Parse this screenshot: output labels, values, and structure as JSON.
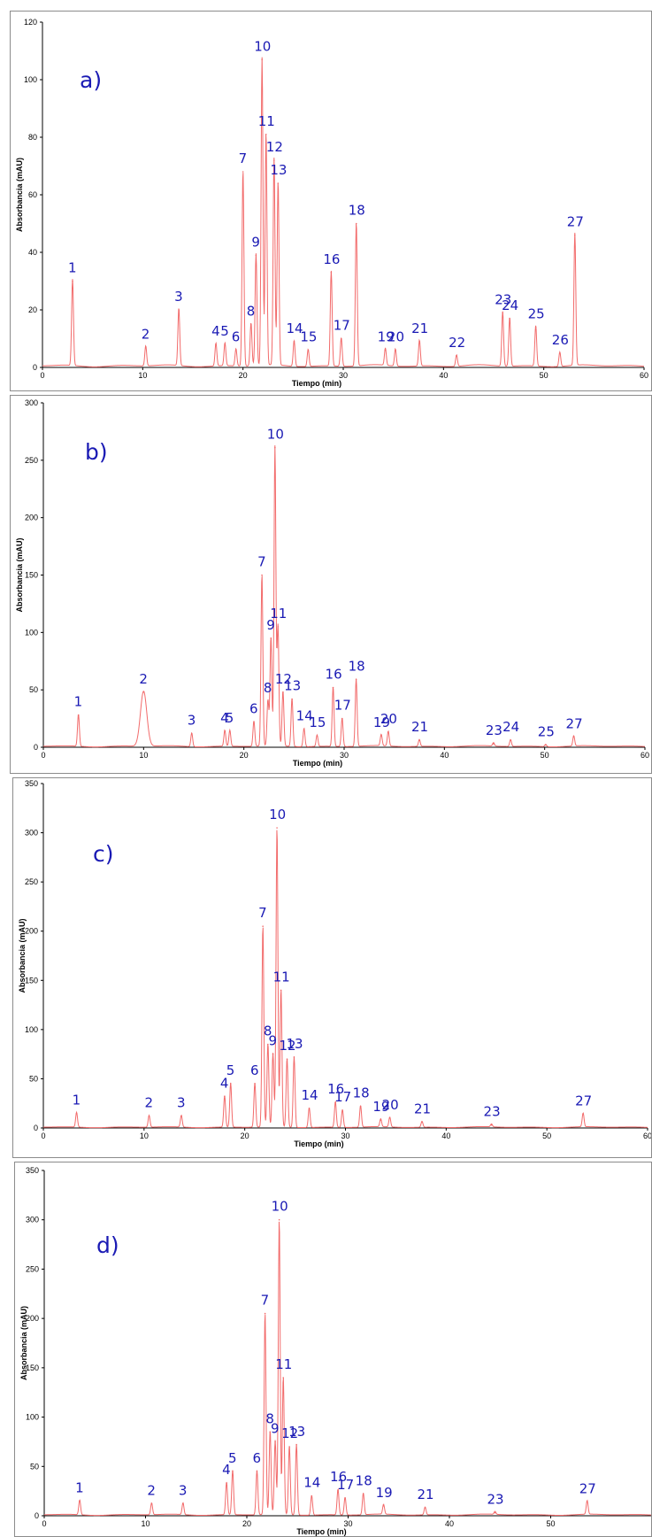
{
  "colors": {
    "trace": "#f26b6b",
    "peak_label": "#1a1ab4",
    "axis": "#000000",
    "frame": "#8c8c8c"
  },
  "chart_data": [
    {
      "type": "line",
      "panel_label": "a)",
      "xlabel": "Tiempo (min)",
      "ylabel": "Absorbancia (mAU)",
      "xlim": [
        0,
        60
      ],
      "ylim": [
        0,
        120
      ],
      "xticks": [
        "0",
        "10",
        "20",
        "30",
        "40",
        "50",
        "60"
      ],
      "yticks": [
        "0",
        "20",
        "40",
        "60",
        "80",
        "100",
        "120"
      ],
      "grid": false,
      "peaks": [
        {
          "label": "1",
          "x": 3.0,
          "y": 30
        },
        {
          "label": "2",
          "x": 10.3,
          "y": 7
        },
        {
          "label": "3",
          "x": 13.6,
          "y": 20
        },
        {
          "label": "4",
          "x": 17.3,
          "y": 8
        },
        {
          "label": "5",
          "x": 18.2,
          "y": 8
        },
        {
          "label": "6",
          "x": 19.3,
          "y": 6
        },
        {
          "label": "7",
          "x": 20.0,
          "y": 68
        },
        {
          "label": "8",
          "x": 20.8,
          "y": 15
        },
        {
          "label": "9",
          "x": 21.3,
          "y": 39
        },
        {
          "label": "10",
          "x": 21.9,
          "y": 107
        },
        {
          "label": "11",
          "x": 22.3,
          "y": 81
        },
        {
          "label": "12",
          "x": 23.1,
          "y": 72
        },
        {
          "label": "13",
          "x": 23.5,
          "y": 64
        },
        {
          "label": "14",
          "x": 25.1,
          "y": 9
        },
        {
          "label": "15",
          "x": 26.5,
          "y": 6
        },
        {
          "label": "16",
          "x": 28.8,
          "y": 33
        },
        {
          "label": "17",
          "x": 29.8,
          "y": 10
        },
        {
          "label": "18",
          "x": 31.3,
          "y": 50
        },
        {
          "label": "19",
          "x": 34.2,
          "y": 6
        },
        {
          "label": "20",
          "x": 35.2,
          "y": 6
        },
        {
          "label": "21",
          "x": 37.6,
          "y": 9
        },
        {
          "label": "22",
          "x": 41.3,
          "y": 4
        },
        {
          "label": "23",
          "x": 45.9,
          "y": 19
        },
        {
          "label": "24",
          "x": 46.6,
          "y": 17
        },
        {
          "label": "25",
          "x": 49.2,
          "y": 14
        },
        {
          "label": "26",
          "x": 51.6,
          "y": 5
        },
        {
          "label": "27",
          "x": 53.1,
          "y": 46
        }
      ]
    },
    {
      "type": "line",
      "panel_label": "b)",
      "xlabel": "Tiempo (min)",
      "ylabel": "Absorbancia (mAU)",
      "xlim": [
        0,
        60
      ],
      "ylim": [
        0,
        300
      ],
      "xticks": [
        "0",
        "10",
        "20",
        "30",
        "40",
        "50",
        "60"
      ],
      "yticks": [
        "0",
        "50",
        "100",
        "150",
        "200",
        "250",
        "300"
      ],
      "grid": false,
      "peaks": [
        {
          "label": "1",
          "x": 3.5,
          "y": 28
        },
        {
          "label": "2",
          "x": 10.0,
          "y": 48
        },
        {
          "label": "3",
          "x": 14.8,
          "y": 12
        },
        {
          "label": "4",
          "x": 18.1,
          "y": 14
        },
        {
          "label": "5",
          "x": 18.6,
          "y": 14
        },
        {
          "label": "6",
          "x": 21.0,
          "y": 22
        },
        {
          "label": "7",
          "x": 21.8,
          "y": 150
        },
        {
          "label": "8",
          "x": 22.4,
          "y": 40
        },
        {
          "label": "9",
          "x": 22.7,
          "y": 95
        },
        {
          "label": "10",
          "x": 23.1,
          "y": 261
        },
        {
          "label": "11",
          "x": 23.4,
          "y": 105
        },
        {
          "label": "12",
          "x": 23.9,
          "y": 48
        },
        {
          "label": "13",
          "x": 24.8,
          "y": 42
        },
        {
          "label": "14",
          "x": 26.0,
          "y": 16
        },
        {
          "label": "15",
          "x": 27.3,
          "y": 10
        },
        {
          "label": "16",
          "x": 28.9,
          "y": 52
        },
        {
          "label": "17",
          "x": 29.8,
          "y": 25
        },
        {
          "label": "18",
          "x": 31.2,
          "y": 59
        },
        {
          "label": "19",
          "x": 33.7,
          "y": 10
        },
        {
          "label": "20",
          "x": 34.4,
          "y": 13
        },
        {
          "label": "21",
          "x": 37.5,
          "y": 6
        },
        {
          "label": "23",
          "x": 44.9,
          "y": 3
        },
        {
          "label": "24",
          "x": 46.6,
          "y": 6
        },
        {
          "label": "25",
          "x": 50.1,
          "y": 2
        },
        {
          "label": "27",
          "x": 52.9,
          "y": 9
        }
      ]
    },
    {
      "type": "line",
      "panel_label": "c)",
      "xlabel": "Tiempo (min)",
      "ylabel": "Absorbancia (mAU)",
      "xlim": [
        0,
        60
      ],
      "ylim": [
        0,
        350
      ],
      "xticks": [
        "0",
        "10",
        "20",
        "30",
        "40",
        "50",
        "60"
      ],
      "yticks": [
        "0",
        "50",
        "100",
        "150",
        "200",
        "250",
        "300",
        "350"
      ],
      "grid": false,
      "peaks": [
        {
          "label": "1",
          "x": 3.3,
          "y": 15
        },
        {
          "label": "2",
          "x": 10.5,
          "y": 12
        },
        {
          "label": "3",
          "x": 13.7,
          "y": 12
        },
        {
          "label": "4",
          "x": 18.0,
          "y": 32
        },
        {
          "label": "5",
          "x": 18.6,
          "y": 45
        },
        {
          "label": "6",
          "x": 21.0,
          "y": 45
        },
        {
          "label": "7",
          "x": 21.8,
          "y": 205
        },
        {
          "label": "8",
          "x": 22.3,
          "y": 85
        },
        {
          "label": "9",
          "x": 22.8,
          "y": 75
        },
        {
          "label": "10",
          "x": 23.2,
          "y": 305
        },
        {
          "label": "11",
          "x": 23.6,
          "y": 140
        },
        {
          "label": "12",
          "x": 24.2,
          "y": 70
        },
        {
          "label": "13",
          "x": 24.9,
          "y": 72
        },
        {
          "label": "14",
          "x": 26.4,
          "y": 20
        },
        {
          "label": "16",
          "x": 29.0,
          "y": 26
        },
        {
          "label": "17",
          "x": 29.7,
          "y": 18
        },
        {
          "label": "18",
          "x": 31.5,
          "y": 22
        },
        {
          "label": "19",
          "x": 33.5,
          "y": 8
        },
        {
          "label": "20",
          "x": 34.4,
          "y": 10
        },
        {
          "label": "21",
          "x": 37.6,
          "y": 6
        },
        {
          "label": "23",
          "x": 44.5,
          "y": 3
        },
        {
          "label": "27",
          "x": 53.6,
          "y": 14
        }
      ]
    },
    {
      "type": "line",
      "panel_label": "d)",
      "xlabel": "Tiempo (min)",
      "ylabel": "Absorbancia (mAU)",
      "xlim": [
        0,
        55
      ],
      "ylim": [
        0,
        350
      ],
      "xticks": [
        "0",
        "10",
        "20",
        "30",
        "40",
        "50"
      ],
      "yticks": [
        "0",
        "50",
        "100",
        "150",
        "200",
        "250",
        "300",
        "350"
      ],
      "grid": false,
      "peaks": [
        {
          "label": "1",
          "x": 3.5,
          "y": 15
        },
        {
          "label": "2",
          "x": 10.6,
          "y": 12
        },
        {
          "label": "3",
          "x": 13.7,
          "y": 12
        },
        {
          "label": "4",
          "x": 18.0,
          "y": 33
        },
        {
          "label": "5",
          "x": 18.6,
          "y": 45
        },
        {
          "label": "6",
          "x": 21.0,
          "y": 45
        },
        {
          "label": "7",
          "x": 21.8,
          "y": 205
        },
        {
          "label": "8",
          "x": 22.3,
          "y": 85
        },
        {
          "label": "9",
          "x": 22.8,
          "y": 75
        },
        {
          "label": "10",
          "x": 23.2,
          "y": 300
        },
        {
          "label": "11",
          "x": 23.6,
          "y": 140
        },
        {
          "label": "12",
          "x": 24.2,
          "y": 70
        },
        {
          "label": "13",
          "x": 24.9,
          "y": 72
        },
        {
          "label": "14",
          "x": 26.4,
          "y": 20
        },
        {
          "label": "16",
          "x": 29.0,
          "y": 26
        },
        {
          "label": "17",
          "x": 29.7,
          "y": 18
        },
        {
          "label": "18",
          "x": 31.5,
          "y": 22
        },
        {
          "label": "19",
          "x": 33.5,
          "y": 10
        },
        {
          "label": "21",
          "x": 37.6,
          "y": 8
        },
        {
          "label": "23",
          "x": 44.5,
          "y": 3
        },
        {
          "label": "27",
          "x": 53.6,
          "y": 14
        }
      ]
    }
  ]
}
